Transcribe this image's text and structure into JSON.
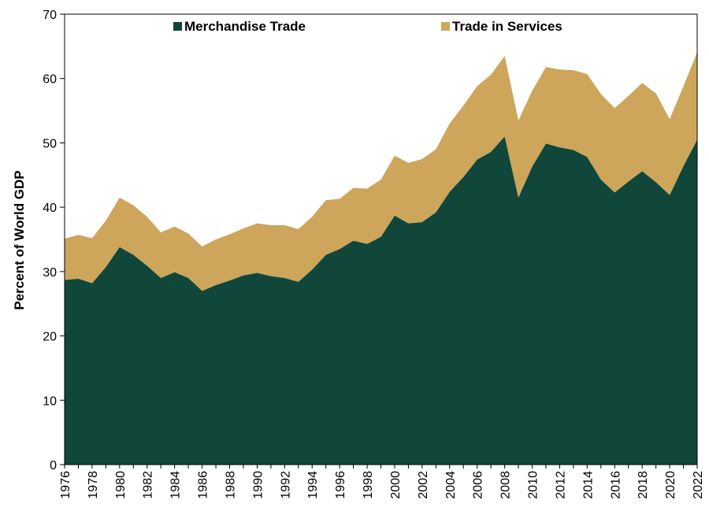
{
  "chart_data": {
    "type": "area",
    "stacked": true,
    "ylabel": "Percent of World GDP",
    "xlabel": "",
    "ylim": [
      0,
      70
    ],
    "yticks": [
      0,
      10,
      20,
      30,
      40,
      50,
      60,
      70
    ],
    "xlim": [
      1976,
      2022
    ],
    "xticks": [
      1976,
      1978,
      1980,
      1982,
      1984,
      1986,
      1988,
      1990,
      1992,
      1994,
      1996,
      1998,
      2000,
      2002,
      2004,
      2006,
      2008,
      2010,
      2012,
      2014,
      2016,
      2018,
      2020,
      2022
    ],
    "legend_position": "top",
    "grid": false,
    "x": [
      1976,
      1977,
      1978,
      1979,
      1980,
      1981,
      1982,
      1983,
      1984,
      1985,
      1986,
      1987,
      1988,
      1989,
      1990,
      1991,
      1992,
      1993,
      1994,
      1995,
      1996,
      1997,
      1998,
      1999,
      2000,
      2001,
      2002,
      2003,
      2004,
      2005,
      2006,
      2007,
      2008,
      2009,
      2010,
      2011,
      2012,
      2013,
      2014,
      2015,
      2016,
      2017,
      2018,
      2019,
      2020,
      2021,
      2022
    ],
    "series": [
      {
        "name": "Merchandise Trade",
        "color": "#10473a",
        "values": [
          28.7,
          28.9,
          28.2,
          30.7,
          33.8,
          32.6,
          30.9,
          29.0,
          29.9,
          29.0,
          27.0,
          27.9,
          28.6,
          29.4,
          29.8,
          29.3,
          29.0,
          28.4,
          30.3,
          32.6,
          33.5,
          34.8,
          34.3,
          35.4,
          38.7,
          37.5,
          37.7,
          39.2,
          42.4,
          44.7,
          47.4,
          48.6,
          51.0,
          41.5,
          46.3,
          49.9,
          49.3,
          48.9,
          47.8,
          44.3,
          42.3,
          44.0,
          45.6,
          43.9,
          41.9,
          46.4,
          50.5
        ]
      },
      {
        "name": "Trade in Services",
        "color": "#cda65b",
        "values": [
          6.4,
          6.8,
          7.0,
          7.2,
          7.7,
          7.7,
          7.6,
          7.1,
          7.1,
          6.9,
          6.9,
          7.1,
          7.2,
          7.3,
          7.7,
          7.9,
          8.2,
          8.2,
          8.2,
          8.5,
          7.8,
          8.2,
          8.6,
          8.9,
          9.3,
          9.4,
          9.8,
          9.8,
          10.6,
          11.1,
          11.4,
          12.0,
          12.5,
          12.0,
          11.8,
          11.9,
          12.1,
          12.4,
          12.9,
          13.3,
          13.1,
          13.3,
          13.7,
          13.8,
          11.8,
          12.4,
          13.6
        ]
      }
    ]
  }
}
